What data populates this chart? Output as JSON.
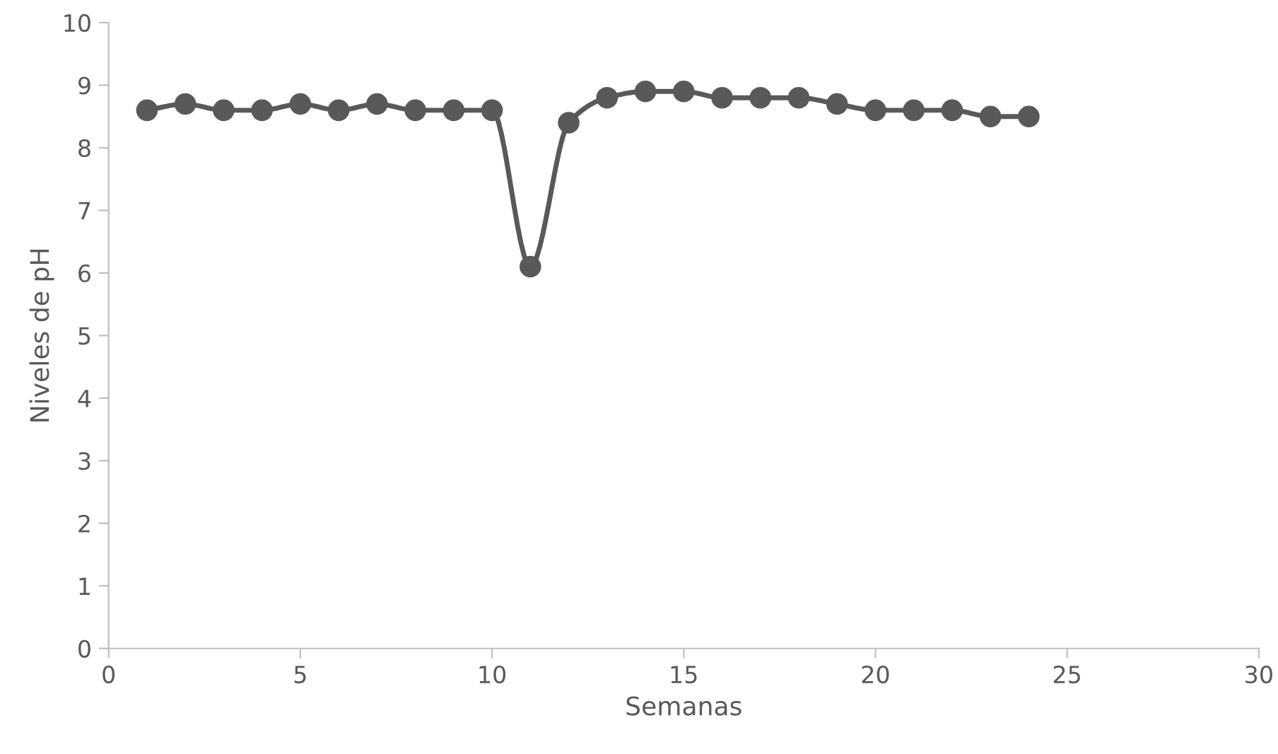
{
  "chart_data": {
    "type": "line",
    "xlabel": "Semanas",
    "ylabel": "Niveles de pH",
    "x": [
      1,
      2,
      3,
      4,
      5,
      6,
      7,
      8,
      9,
      10,
      11,
      12,
      13,
      14,
      15,
      16,
      17,
      18,
      19,
      20,
      21,
      22,
      23,
      24
    ],
    "series": [
      {
        "color": "#595959",
        "values": [
          8.6,
          8.7,
          8.6,
          8.6,
          8.7,
          8.6,
          8.7,
          8.6,
          8.6,
          8.6,
          6.1,
          8.4,
          8.8,
          8.9,
          8.9,
          8.8,
          8.8,
          8.8,
          8.7,
          8.6,
          8.6,
          8.6,
          8.5,
          8.5
        ]
      }
    ],
    "xlim": [
      0,
      30
    ],
    "xticks": [
      0,
      5,
      10,
      15,
      20,
      25,
      30
    ],
    "ylim": [
      0,
      10
    ],
    "yticks": [
      0,
      1,
      2,
      3,
      4,
      5,
      6,
      7,
      8,
      9,
      10
    ],
    "marker": "circle",
    "line_style": "solid",
    "grid": false,
    "legend": false
  }
}
